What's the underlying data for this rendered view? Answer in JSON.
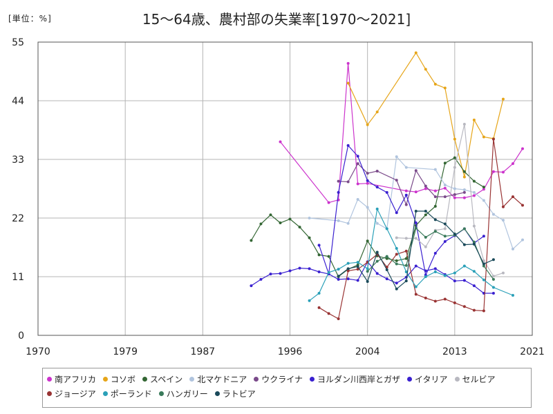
{
  "unit_label": "[単位：%]",
  "title": "15〜64歳、農村部の失業率[1970〜2021]",
  "chart_data": {
    "type": "line",
    "title": "15〜64歳、農村部の失業率[1970〜2021]",
    "ylabel": "[単位：%]",
    "xlim": [
      1970,
      2021
    ],
    "ylim": [
      0,
      55
    ],
    "x_ticks": [
      1970,
      1979,
      1987,
      1996,
      2004,
      2013,
      2021
    ],
    "y_ticks": [
      0,
      11,
      22,
      33,
      44,
      55
    ],
    "grid": true,
    "legend_position": "bottom",
    "series": [
      {
        "name": "南アフリカ",
        "color": "#cc33cc",
        "points": [
          [
            1995,
            36.3
          ],
          [
            2000,
            24.9
          ],
          [
            2001,
            25.4
          ],
          [
            2002,
            51
          ],
          [
            2003,
            28.4
          ],
          [
            2004,
            28.5
          ],
          [
            2008,
            27.1
          ],
          [
            2009,
            26.9
          ],
          [
            2010,
            27.5
          ],
          [
            2011,
            27.1
          ],
          [
            2012,
            27.6
          ],
          [
            2013,
            25.8
          ],
          [
            2014,
            25.8
          ],
          [
            2015,
            26.2
          ],
          [
            2016,
            27.4
          ],
          [
            2017,
            30.7
          ],
          [
            2018,
            30.6
          ],
          [
            2019,
            32.2
          ],
          [
            2020,
            35
          ]
        ]
      },
      {
        "name": "コソボ",
        "color": "#e6a519",
        "points": [
          [
            2002,
            47.3
          ],
          [
            2004,
            39.5
          ],
          [
            2005,
            41.9
          ],
          [
            2009,
            53
          ],
          [
            2010,
            49.9
          ],
          [
            2011,
            47.1
          ],
          [
            2012,
            46.4
          ],
          [
            2013,
            36.8
          ],
          [
            2014,
            29.7
          ],
          [
            2015,
            40.4
          ],
          [
            2016,
            37.2
          ],
          [
            2017,
            36.9
          ],
          [
            2018,
            44.3
          ]
        ]
      },
      {
        "name": "スペイン",
        "color": "#336633",
        "points": [
          [
            1992,
            17.8
          ],
          [
            1993,
            20.9
          ],
          [
            1994,
            22.6
          ],
          [
            1995,
            21.1
          ],
          [
            1996,
            21.8
          ],
          [
            1997,
            20.3
          ],
          [
            1998,
            18.3
          ],
          [
            1999,
            15.1
          ],
          [
            2000,
            14.8
          ],
          [
            2001,
            11
          ],
          [
            2002,
            12.4
          ],
          [
            2003,
            13.2
          ],
          [
            2004,
            17.7
          ],
          [
            2005,
            14.9
          ],
          [
            2006,
            14.4
          ],
          [
            2007,
            14
          ],
          [
            2008,
            14.4
          ],
          [
            2009,
            20.6
          ],
          [
            2010,
            22.6
          ],
          [
            2011,
            24.2
          ],
          [
            2012,
            32.3
          ],
          [
            2013,
            33.3
          ],
          [
            2014,
            30.7
          ],
          [
            2015,
            28.9
          ],
          [
            2016,
            27.8
          ]
        ]
      },
      {
        "name": "北マケドニア",
        "color": "#b0c4de",
        "points": [
          [
            1998,
            22
          ],
          [
            2001,
            21.5
          ],
          [
            2002,
            21
          ],
          [
            2003,
            25.5
          ],
          [
            2004,
            24
          ],
          [
            2005,
            21
          ],
          [
            2006,
            20
          ],
          [
            2007,
            33.5
          ],
          [
            2008,
            31.5
          ],
          [
            2011,
            31.1
          ],
          [
            2012,
            28.2
          ],
          [
            2013,
            27.5
          ],
          [
            2014,
            27.3
          ],
          [
            2015,
            26.8
          ],
          [
            2016,
            25.3
          ],
          [
            2017,
            22.7
          ],
          [
            2018,
            21.6
          ],
          [
            2019,
            16.2
          ],
          [
            2020,
            17.9
          ]
        ]
      },
      {
        "name": "ウクライナ",
        "color": "#7a4a8a",
        "points": [
          [
            2001,
            28.9
          ],
          [
            2002,
            28.8
          ],
          [
            2003,
            32.2
          ],
          [
            2004,
            30.4
          ],
          [
            2005,
            30.8
          ],
          [
            2007,
            29.1
          ],
          [
            2008,
            24.5
          ],
          [
            2009,
            30.9
          ],
          [
            2010,
            28
          ],
          [
            2011,
            26
          ],
          [
            2012,
            26
          ],
          [
            2013,
            26.4
          ],
          [
            2014,
            26.8
          ]
        ]
      },
      {
        "name": "ヨルダン川西岸とガザ",
        "color": "#3a20d0",
        "points": [
          [
            1999,
            16.9
          ],
          [
            2000,
            11.5
          ],
          [
            2001,
            26.8
          ],
          [
            2002,
            35.6
          ],
          [
            2003,
            33.6
          ],
          [
            2004,
            29
          ],
          [
            2005,
            27.8
          ],
          [
            2006,
            26.8
          ],
          [
            2007,
            23
          ],
          [
            2008,
            26.3
          ],
          [
            2009,
            21.1
          ],
          [
            2010,
            11.3
          ],
          [
            2011,
            15.4
          ],
          [
            2012,
            17.6
          ],
          [
            2013,
            18.7
          ],
          [
            2014,
            20
          ],
          [
            2015,
            17.3
          ],
          [
            2016,
            18.6
          ]
        ]
      },
      {
        "name": "イタリア",
        "color": "#3a20d0",
        "points": [
          [
            1992,
            9.3
          ],
          [
            1993,
            10.5
          ],
          [
            1994,
            11.5
          ],
          [
            1995,
            11.6
          ],
          [
            1996,
            12.1
          ],
          [
            1997,
            12.6
          ],
          [
            1998,
            12.5
          ],
          [
            1999,
            11.9
          ],
          [
            2000,
            11.5
          ],
          [
            2001,
            10.5
          ],
          [
            2002,
            10.6
          ],
          [
            2003,
            10.3
          ],
          [
            2004,
            13.8
          ],
          [
            2005,
            11.6
          ],
          [
            2006,
            10.6
          ],
          [
            2007,
            9.8
          ],
          [
            2008,
            10.9
          ],
          [
            2009,
            13
          ],
          [
            2010,
            12.1
          ],
          [
            2011,
            12.5
          ],
          [
            2012,
            11.4
          ],
          [
            2013,
            10.2
          ],
          [
            2014,
            10.3
          ],
          [
            2015,
            9.3
          ],
          [
            2016,
            7.9
          ],
          [
            2017,
            7.9
          ]
        ]
      },
      {
        "name": "セルビア",
        "color": "#b8b8c0",
        "points": [
          [
            2007,
            18.3
          ],
          [
            2008,
            18.2
          ],
          [
            2009,
            18.2
          ],
          [
            2010,
            16.6
          ],
          [
            2011,
            19.7
          ],
          [
            2012,
            20
          ],
          [
            2013,
            31.5
          ],
          [
            2014,
            39.6
          ],
          [
            2015,
            20.5
          ],
          [
            2016,
            14
          ],
          [
            2017,
            11.1
          ],
          [
            2018,
            11.7
          ]
        ]
      },
      {
        "name": "ジョージア",
        "color": "#993333",
        "points": [
          [
            1999,
            5.2
          ],
          [
            2000,
            4.1
          ],
          [
            2001,
            3.1
          ],
          [
            2002,
            12.1
          ],
          [
            2003,
            12.4
          ],
          [
            2004,
            13.7
          ],
          [
            2005,
            15.2
          ],
          [
            2006,
            12.8
          ],
          [
            2007,
            15.2
          ],
          [
            2008,
            15.8
          ],
          [
            2009,
            7.7
          ],
          [
            2010,
            7
          ],
          [
            2011,
            6.4
          ],
          [
            2012,
            6.8
          ],
          [
            2013,
            6.1
          ],
          [
            2014,
            5.4
          ],
          [
            2015,
            4.7
          ],
          [
            2016,
            4.6
          ],
          [
            2017,
            36.8
          ],
          [
            2018,
            24.1
          ],
          [
            2019,
            26
          ],
          [
            2020,
            24.4
          ]
        ]
      },
      {
        "name": "ポーランド",
        "color": "#2aa0b8",
        "points": [
          [
            1998,
            6.5
          ],
          [
            1999,
            7.9
          ],
          [
            2000,
            11.8
          ],
          [
            2001,
            12.4
          ],
          [
            2002,
            13.5
          ],
          [
            2003,
            13.7
          ],
          [
            2004,
            12.5
          ],
          [
            2005,
            23.7
          ],
          [
            2006,
            20
          ],
          [
            2007,
            16.3
          ],
          [
            2008,
            11.9
          ],
          [
            2009,
            9.1
          ],
          [
            2010,
            11
          ],
          [
            2011,
            11.9
          ],
          [
            2012,
            11.2
          ],
          [
            2013,
            11.7
          ],
          [
            2014,
            13
          ],
          [
            2015,
            12
          ],
          [
            2016,
            10.4
          ],
          [
            2017,
            9
          ],
          [
            2019,
            7.5
          ]
        ]
      },
      {
        "name": "ハンガリー",
        "color": "#3a7a5a",
        "points": [
          [
            2004,
            12
          ],
          [
            2005,
            13.9
          ],
          [
            2006,
            14.8
          ],
          [
            2007,
            13.4
          ],
          [
            2008,
            13.1
          ],
          [
            2009,
            20.1
          ],
          [
            2010,
            18.4
          ],
          [
            2011,
            19.5
          ],
          [
            2012,
            18.6
          ],
          [
            2013,
            18.8
          ],
          [
            2014,
            20
          ],
          [
            2015,
            17.5
          ],
          [
            2016,
            13
          ],
          [
            2017,
            10.5
          ]
        ]
      },
      {
        "name": "ラトビア",
        "color": "#1a4a5a",
        "points": [
          [
            2001,
            11.1
          ],
          [
            2002,
            12.5
          ],
          [
            2003,
            12.9
          ],
          [
            2004,
            10.1
          ],
          [
            2005,
            15.6
          ],
          [
            2006,
            12.3
          ],
          [
            2007,
            8.7
          ],
          [
            2008,
            10.2
          ],
          [
            2009,
            23.3
          ],
          [
            2010,
            23.3
          ],
          [
            2011,
            21.7
          ],
          [
            2012,
            20.9
          ],
          [
            2013,
            19
          ],
          [
            2014,
            17
          ],
          [
            2015,
            17.1
          ],
          [
            2016,
            13.4
          ],
          [
            2017,
            14.2
          ]
        ]
      }
    ]
  }
}
